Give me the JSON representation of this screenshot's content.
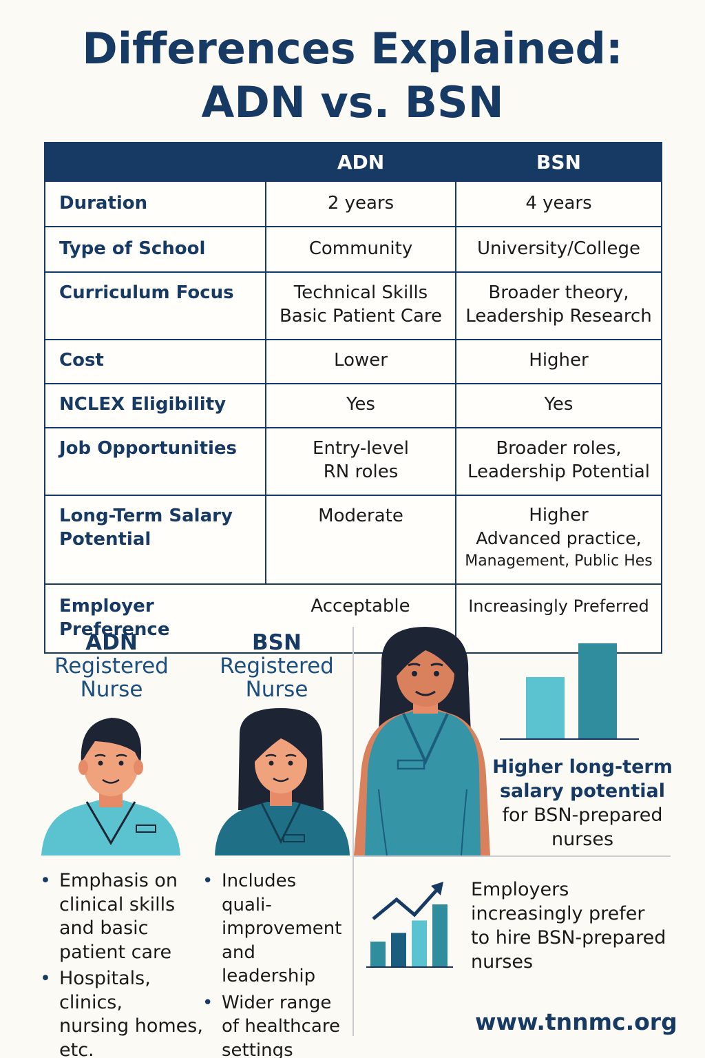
{
  "title": {
    "line1": "Differences Explained:",
    "line2": "ADN vs. BSN"
  },
  "table": {
    "headers": {
      "blank": "",
      "adn": "ADN",
      "bsn": "BSN"
    },
    "rows": [
      {
        "label": "Duration",
        "adn": [
          "2 years"
        ],
        "bsn": [
          "4 years"
        ]
      },
      {
        "label": "Type of School",
        "adn": [
          "Community"
        ],
        "bsn": [
          "University/College"
        ]
      },
      {
        "label": "Curriculum Focus",
        "adn": [
          "Technical Skills",
          "Basic Patient Care"
        ],
        "bsn": [
          "Broader theory,",
          "Leadership Research"
        ]
      },
      {
        "label": "Cost",
        "adn": [
          "Lower"
        ],
        "bsn": [
          "Higher"
        ]
      },
      {
        "label": "NCLEX Eligibility",
        "adn": [
          "Yes"
        ],
        "bsn": [
          "Yes"
        ]
      },
      {
        "label": "Job Opportunities",
        "adn": [
          "Entry-level",
          "RN roles"
        ],
        "bsn": [
          "Broader roles,",
          "Leadership Potential"
        ]
      },
      {
        "label_lines": [
          "Long-Term Salary",
          "Potential"
        ],
        "adn": [
          "Moderate"
        ],
        "bsn": [
          "Higher",
          "Advanced practice,",
          "Management, Public Hes"
        ]
      },
      {
        "label": "Employer Preference",
        "adn": [
          "Acceptable"
        ],
        "bsn": [
          "Increasingly Preferred"
        ]
      }
    ]
  },
  "adn_nurse": {
    "acronym": "ADN",
    "line1": "Registered",
    "line2": "Nurse",
    "bullets": [
      [
        "Emphasis on",
        "clinical skills",
        "and basic",
        "patient care"
      ],
      [
        "Hospitals, clinics,",
        "nursing homes,",
        "etc."
      ]
    ]
  },
  "bsn_nurse": {
    "acronym": "BSN",
    "line1": "Registered",
    "line2": "Nurse",
    "bullets": [
      [
        "Includes quali-",
        "improvement",
        "and leadership"
      ],
      [
        "Wider range",
        "of healthcare",
        "settings"
      ]
    ]
  },
  "salary_callout": {
    "bold1": "Higher long-term",
    "bold2": "salary potential",
    "line3": "for BSN-prepared",
    "line4": "nurses"
  },
  "salary_chart": {
    "type": "bar",
    "values": [
      2,
      3.1
    ],
    "colors": [
      "#5bc2cf",
      "#2f8d9e"
    ]
  },
  "trend_chart": {
    "type": "bar",
    "values": [
      1,
      1.35,
      1.85,
      2.5
    ],
    "colors": [
      "#2f8d9e",
      "#1b5d7e",
      "#5bc2cf",
      "#2f8d9e"
    ],
    "arrow_color": "#173a64"
  },
  "employer_callout": {
    "line1": "Employers",
    "line2": "increasingly prefer",
    "line3": "to hire BSN-prepared",
    "line4": "nurses"
  },
  "website": "www.tnnmc.org",
  "colors": {
    "navy": "#173a64",
    "teal_light": "#5bc2cf",
    "teal_dark": "#2f8d9e",
    "skin": "#f0a27c",
    "hair": "#1d2433"
  }
}
